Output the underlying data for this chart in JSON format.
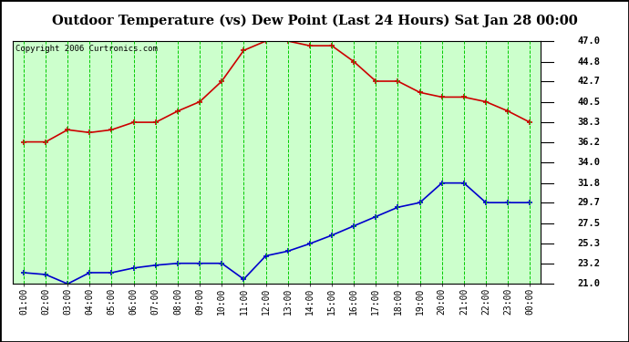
{
  "title": "Outdoor Temperature (vs) Dew Point (Last 24 Hours) Sat Jan 28 00:00",
  "copyright": "Copyright 2006 Curtronics.com",
  "x_labels": [
    "01:00",
    "02:00",
    "03:00",
    "04:00",
    "05:00",
    "06:00",
    "07:00",
    "08:00",
    "09:00",
    "10:00",
    "11:00",
    "12:00",
    "13:00",
    "14:00",
    "15:00",
    "16:00",
    "17:00",
    "18:00",
    "19:00",
    "20:00",
    "21:00",
    "22:00",
    "23:00",
    "00:00"
  ],
  "temp_values": [
    36.2,
    36.2,
    37.5,
    37.2,
    37.5,
    38.3,
    38.3,
    39.5,
    40.5,
    42.7,
    46.0,
    47.0,
    47.0,
    46.5,
    46.5,
    44.8,
    42.7,
    42.7,
    41.5,
    41.0,
    41.0,
    40.5,
    39.5,
    38.3
  ],
  "dew_values": [
    22.2,
    22.0,
    21.0,
    22.2,
    22.2,
    22.7,
    23.0,
    23.2,
    23.2,
    23.2,
    21.5,
    24.0,
    24.5,
    25.3,
    26.2,
    27.2,
    28.2,
    29.2,
    29.7,
    31.8,
    31.8,
    29.7,
    29.7,
    29.7
  ],
  "temp_color": "#cc0000",
  "dew_color": "#0000cc",
  "plot_bg_color": "#ccffcc",
  "grid_color": "#00cc00",
  "ylim_min": 21.0,
  "ylim_max": 47.0,
  "yticks": [
    21.0,
    23.2,
    25.3,
    27.5,
    29.7,
    31.8,
    34.0,
    36.2,
    38.3,
    40.5,
    42.7,
    44.8,
    47.0
  ]
}
